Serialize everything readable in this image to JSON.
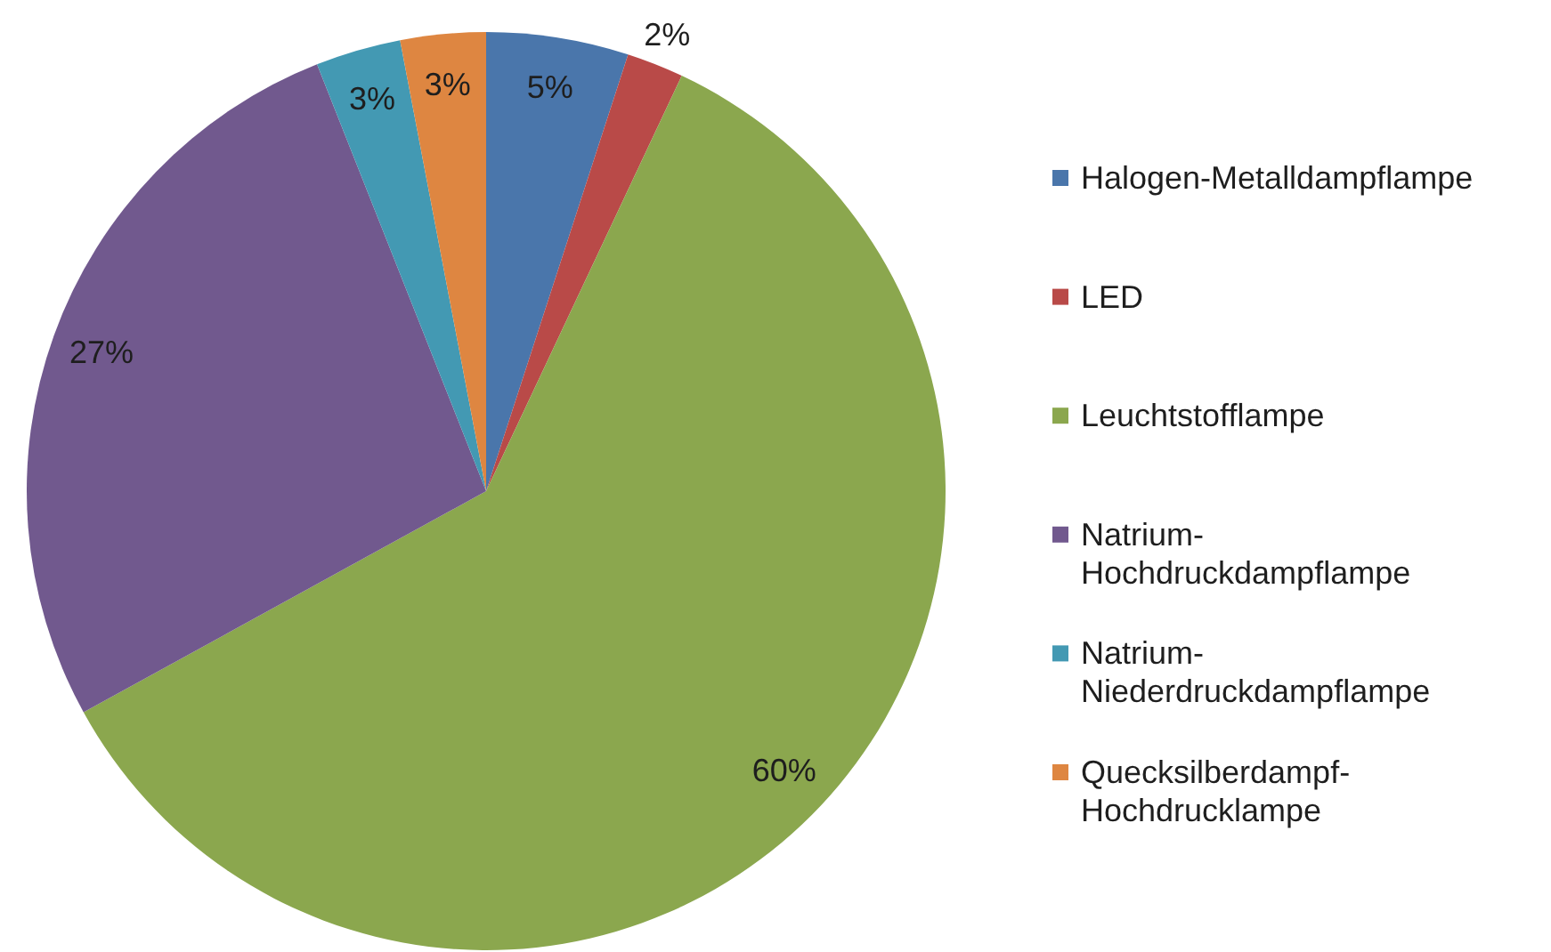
{
  "chart_data": {
    "type": "pie",
    "categories": [
      "Halogen-Metalldampflampe",
      "LED",
      "Leuchtstofflampe",
      "Natrium-Hochdruckdampflampe",
      "Natrium-Niederdruckdampflampe",
      "Quecksilberdampf-Hochdrucklampe"
    ],
    "values": [
      5,
      2,
      60,
      27,
      3,
      3
    ],
    "colors": [
      "#4a76ab",
      "#b94a48",
      "#8ba74e",
      "#71598e",
      "#4399b3",
      "#de8641"
    ],
    "value_labels": [
      "5%",
      "2%",
      "60%",
      "27%",
      "3%",
      "3%"
    ],
    "legend": "right"
  }
}
